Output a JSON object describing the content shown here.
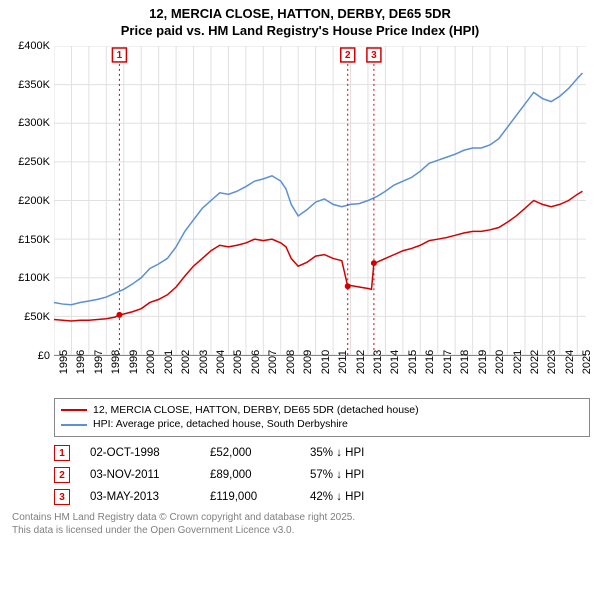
{
  "title_line1": "12, MERCIA CLOSE, HATTON, DERBY, DE65 5DR",
  "title_line2": "Price paid vs. HM Land Registry's House Price Index (HPI)",
  "chart": {
    "type": "line",
    "background_color": "#ffffff",
    "grid_color": "#e0e0e0",
    "axis_color": "#888888",
    "x_min": 1995,
    "x_max": 2025.5,
    "x_ticks": [
      1995,
      1996,
      1997,
      1998,
      1999,
      2000,
      2001,
      2002,
      2003,
      2004,
      2005,
      2006,
      2007,
      2008,
      2009,
      2010,
      2011,
      2012,
      2013,
      2014,
      2015,
      2016,
      2017,
      2018,
      2019,
      2020,
      2021,
      2022,
      2023,
      2024,
      2025
    ],
    "y_min": 0,
    "y_max": 400000,
    "y_ticks": [
      {
        "v": 0,
        "label": "£0"
      },
      {
        "v": 50000,
        "label": "£50K"
      },
      {
        "v": 100000,
        "label": "£100K"
      },
      {
        "v": 150000,
        "label": "£150K"
      },
      {
        "v": 200000,
        "label": "£200K"
      },
      {
        "v": 250000,
        "label": "£250K"
      },
      {
        "v": 300000,
        "label": "£300K"
      },
      {
        "v": 350000,
        "label": "£350K"
      },
      {
        "v": 400000,
        "label": "£400K"
      }
    ],
    "series": [
      {
        "name": "price_paid",
        "color": "#d40000",
        "label": "12, MERCIA CLOSE, HATTON, DERBY, DE65 5DR (detached house)",
        "data": [
          [
            1995.0,
            46000
          ],
          [
            1995.5,
            45000
          ],
          [
            1996.0,
            44000
          ],
          [
            1996.5,
            45000
          ],
          [
            1997.0,
            45000
          ],
          [
            1997.5,
            46000
          ],
          [
            1998.0,
            47000
          ],
          [
            1998.5,
            49000
          ],
          [
            1998.75,
            52000
          ],
          [
            1999.0,
            53000
          ],
          [
            1999.5,
            56000
          ],
          [
            2000.0,
            60000
          ],
          [
            2000.5,
            68000
          ],
          [
            2001.0,
            72000
          ],
          [
            2001.5,
            78000
          ],
          [
            2002.0,
            88000
          ],
          [
            2002.5,
            102000
          ],
          [
            2003.0,
            115000
          ],
          [
            2003.5,
            125000
          ],
          [
            2004.0,
            135000
          ],
          [
            2004.5,
            142000
          ],
          [
            2005.0,
            140000
          ],
          [
            2005.5,
            142000
          ],
          [
            2006.0,
            145000
          ],
          [
            2006.5,
            150000
          ],
          [
            2007.0,
            148000
          ],
          [
            2007.5,
            150000
          ],
          [
            2008.0,
            145000
          ],
          [
            2008.3,
            140000
          ],
          [
            2008.6,
            125000
          ],
          [
            2009.0,
            115000
          ],
          [
            2009.5,
            120000
          ],
          [
            2010.0,
            128000
          ],
          [
            2010.5,
            130000
          ],
          [
            2011.0,
            125000
          ],
          [
            2011.5,
            122000
          ],
          [
            2011.84,
            89000
          ],
          [
            2012.0,
            90000
          ],
          [
            2012.5,
            88000
          ],
          [
            2013.0,
            86000
          ],
          [
            2013.2,
            85000
          ],
          [
            2013.34,
            119000
          ],
          [
            2013.5,
            120000
          ],
          [
            2014.0,
            125000
          ],
          [
            2014.5,
            130000
          ],
          [
            2015.0,
            135000
          ],
          [
            2015.5,
            138000
          ],
          [
            2016.0,
            142000
          ],
          [
            2016.5,
            148000
          ],
          [
            2017.0,
            150000
          ],
          [
            2017.5,
            152000
          ],
          [
            2018.0,
            155000
          ],
          [
            2018.5,
            158000
          ],
          [
            2019.0,
            160000
          ],
          [
            2019.5,
            160000
          ],
          [
            2020.0,
            162000
          ],
          [
            2020.5,
            165000
          ],
          [
            2021.0,
            172000
          ],
          [
            2021.5,
            180000
          ],
          [
            2022.0,
            190000
          ],
          [
            2022.5,
            200000
          ],
          [
            2023.0,
            195000
          ],
          [
            2023.5,
            192000
          ],
          [
            2024.0,
            195000
          ],
          [
            2024.5,
            200000
          ],
          [
            2025.0,
            208000
          ],
          [
            2025.3,
            212000
          ]
        ]
      },
      {
        "name": "hpi",
        "color": "#5b8fd6",
        "label": "HPI: Average price, detached house, South Derbyshire",
        "data": [
          [
            1995.0,
            68000
          ],
          [
            1995.5,
            66000
          ],
          [
            1996.0,
            65000
          ],
          [
            1996.5,
            68000
          ],
          [
            1997.0,
            70000
          ],
          [
            1997.5,
            72000
          ],
          [
            1998.0,
            75000
          ],
          [
            1998.5,
            80000
          ],
          [
            1999.0,
            85000
          ],
          [
            1999.5,
            92000
          ],
          [
            2000.0,
            100000
          ],
          [
            2000.5,
            112000
          ],
          [
            2001.0,
            118000
          ],
          [
            2001.5,
            125000
          ],
          [
            2002.0,
            140000
          ],
          [
            2002.5,
            160000
          ],
          [
            2003.0,
            175000
          ],
          [
            2003.5,
            190000
          ],
          [
            2004.0,
            200000
          ],
          [
            2004.5,
            210000
          ],
          [
            2005.0,
            208000
          ],
          [
            2005.5,
            212000
          ],
          [
            2006.0,
            218000
          ],
          [
            2006.5,
            225000
          ],
          [
            2007.0,
            228000
          ],
          [
            2007.5,
            232000
          ],
          [
            2008.0,
            225000
          ],
          [
            2008.3,
            215000
          ],
          [
            2008.6,
            195000
          ],
          [
            2009.0,
            180000
          ],
          [
            2009.5,
            188000
          ],
          [
            2010.0,
            198000
          ],
          [
            2010.5,
            202000
          ],
          [
            2011.0,
            195000
          ],
          [
            2011.5,
            192000
          ],
          [
            2012.0,
            195000
          ],
          [
            2012.5,
            196000
          ],
          [
            2013.0,
            200000
          ],
          [
            2013.5,
            205000
          ],
          [
            2014.0,
            212000
          ],
          [
            2014.5,
            220000
          ],
          [
            2015.0,
            225000
          ],
          [
            2015.5,
            230000
          ],
          [
            2016.0,
            238000
          ],
          [
            2016.5,
            248000
          ],
          [
            2017.0,
            252000
          ],
          [
            2017.5,
            256000
          ],
          [
            2018.0,
            260000
          ],
          [
            2018.5,
            265000
          ],
          [
            2019.0,
            268000
          ],
          [
            2019.5,
            268000
          ],
          [
            2020.0,
            272000
          ],
          [
            2020.5,
            280000
          ],
          [
            2021.0,
            295000
          ],
          [
            2021.5,
            310000
          ],
          [
            2022.0,
            325000
          ],
          [
            2022.5,
            340000
          ],
          [
            2023.0,
            332000
          ],
          [
            2023.5,
            328000
          ],
          [
            2024.0,
            335000
          ],
          [
            2024.5,
            345000
          ],
          [
            2025.0,
            358000
          ],
          [
            2025.3,
            365000
          ]
        ]
      }
    ],
    "markers": [
      {
        "n": "1",
        "x": 1998.75,
        "y": 52000,
        "color": "#d40000"
      },
      {
        "n": "2",
        "x": 2011.84,
        "y": 89000,
        "color": "#d40000"
      },
      {
        "n": "3",
        "x": 2013.34,
        "y": 119000,
        "color": "#d40000"
      }
    ]
  },
  "legend": [
    {
      "color": "#d40000",
      "label": "12, MERCIA CLOSE, HATTON, DERBY, DE65 5DR (detached house)"
    },
    {
      "color": "#5b8fd6",
      "label": "HPI: Average price, detached house, South Derbyshire"
    }
  ],
  "sales": [
    {
      "n": "1",
      "color": "#d40000",
      "date": "02-OCT-1998",
      "price": "£52,000",
      "delta": "35% ↓ HPI"
    },
    {
      "n": "2",
      "color": "#d40000",
      "date": "03-NOV-2011",
      "price": "£89,000",
      "delta": "57% ↓ HPI"
    },
    {
      "n": "3",
      "color": "#d40000",
      "date": "03-MAY-2013",
      "price": "£119,000",
      "delta": "42% ↓ HPI"
    }
  ],
  "footer_line1": "Contains HM Land Registry data © Crown copyright and database right 2025.",
  "footer_line2": "This data is licensed under the Open Government Licence v3.0."
}
